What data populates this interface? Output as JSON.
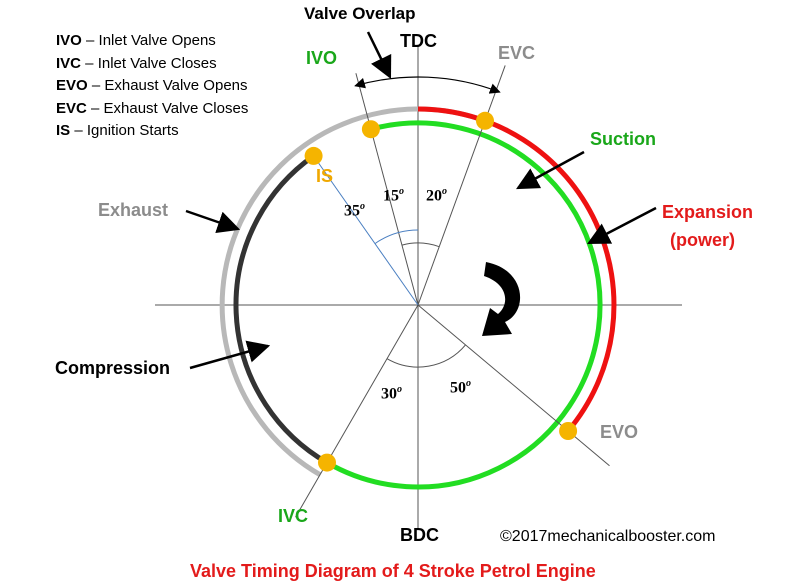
{
  "legend": [
    {
      "abbr": "IVO",
      "text": " – Inlet Valve Opens"
    },
    {
      "abbr": "IVC",
      "text": " – Inlet Valve Closes"
    },
    {
      "abbr": "EVO",
      "text": " – Exhaust Valve Opens"
    },
    {
      "abbr": "EVC",
      "text": " – Exhaust Valve Closes"
    },
    {
      "abbr": "IS",
      "text": " – Ignition Starts"
    }
  ],
  "labels": {
    "valve_overlap": "Valve Overlap",
    "tdc": "TDC",
    "bdc": "BDC",
    "ivo": "IVO",
    "evc": "EVC",
    "is": "IS",
    "suction": "Suction",
    "expansion_line1": "Expansion",
    "expansion_line2": "(power)",
    "exhaust": "Exhaust",
    "compression": "Compression",
    "evo": "EVO",
    "ivc": "IVC"
  },
  "angles": {
    "ivo_before_tdc": "15",
    "evc_after_tdc": "20",
    "is_before_tdc": "35",
    "ivc_after_bdc": "30",
    "evo_before_bdc": "50",
    "degree_mark": "o"
  },
  "copyright": "©2017mechanicalbooster.com",
  "caption": "Valve Timing Diagram of 4 Stroke Petrol Engine",
  "colors": {
    "suction": "#22dd22",
    "expansion": "#ee1111",
    "exhaust": "#b8b8b8",
    "compression": "#333333",
    "marker": "#f5b400",
    "label_green": "#1aa71a",
    "label_gray": "#8c8c8c",
    "label_red": "#e31b1b",
    "label_orange": "#f0a800",
    "caption_red": "#e31b1b"
  },
  "icons": {
    "rotation_arrow": "curved-clockwise-arrow-icon"
  }
}
